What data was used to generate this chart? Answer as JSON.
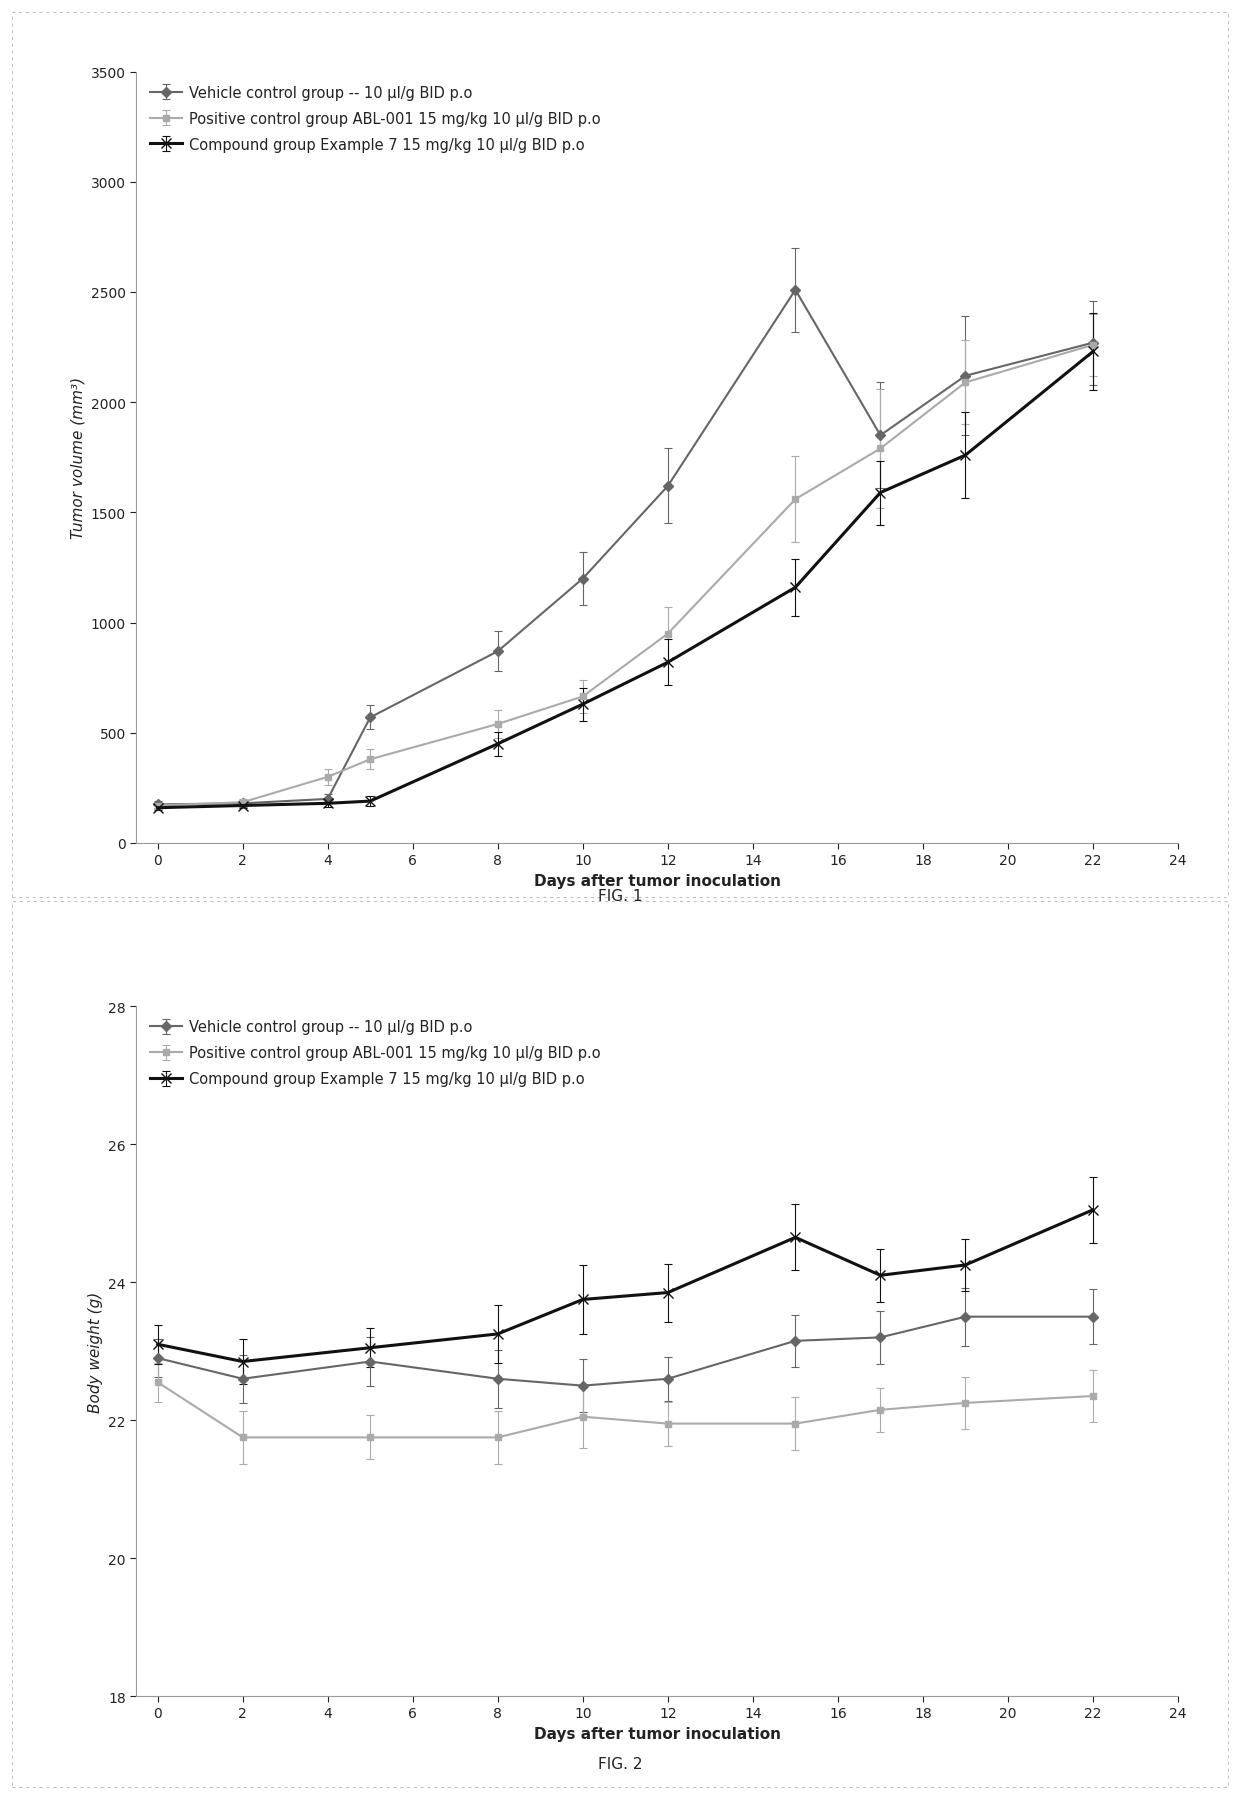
{
  "fig1": {
    "title": "FIG. 1",
    "xlabel": "Days after tumor inoculation",
    "ylabel": "Tumor volume (mm³)",
    "xlim": [
      -0.5,
      24
    ],
    "ylim": [
      0,
      3500
    ],
    "xticks": [
      0,
      2,
      4,
      6,
      8,
      10,
      12,
      14,
      16,
      18,
      20,
      22,
      24
    ],
    "yticks": [
      0,
      500,
      1000,
      1500,
      2000,
      2500,
      3000,
      3500
    ],
    "series": [
      {
        "label": "Vehicle control group -- 10 μl/g BID p.o",
        "color": "#666666",
        "linewidth": 1.5,
        "marker": "D",
        "markersize": 5,
        "x": [
          0,
          2,
          4,
          5,
          8,
          10,
          12,
          15,
          17,
          19,
          22
        ],
        "y": [
          175,
          180,
          200,
          570,
          870,
          1200,
          1620,
          2510,
          1850,
          2120,
          2270
        ],
        "yerr": [
          15,
          15,
          20,
          55,
          90,
          120,
          170,
          190,
          240,
          270,
          190
        ]
      },
      {
        "label": "Positive control group ABL-001 15 mg/kg 10 μl/g BID p.o",
        "color": "#aaaaaa",
        "linewidth": 1.5,
        "marker": "s",
        "markersize": 5,
        "x": [
          0,
          2,
          4,
          5,
          8,
          10,
          12,
          15,
          17,
          19,
          22
        ],
        "y": [
          170,
          185,
          300,
          380,
          540,
          665,
          950,
          1560,
          1790,
          2090,
          2260
        ],
        "yerr": [
          15,
          15,
          35,
          45,
          65,
          75,
          120,
          195,
          270,
          190,
          140
        ]
      },
      {
        "label": "Compound group Example 7 15 mg/kg 10 μl/g BID p.o",
        "color": "#111111",
        "linewidth": 2.2,
        "marker": "x",
        "markersize": 7,
        "x": [
          0,
          2,
          4,
          5,
          8,
          10,
          12,
          15,
          17,
          19,
          22
        ],
        "y": [
          160,
          170,
          180,
          190,
          450,
          630,
          820,
          1160,
          1590,
          1760,
          2230
        ],
        "yerr": [
          12,
          12,
          18,
          22,
          55,
          75,
          105,
          130,
          145,
          195,
          175
        ]
      }
    ]
  },
  "fig2": {
    "title": "FIG. 2",
    "xlabel": "Days after tumor inoculation",
    "ylabel": "Body weight (g)",
    "xlim": [
      -0.5,
      24
    ],
    "ylim": [
      18.0,
      28.0
    ],
    "xticks": [
      0,
      2,
      4,
      6,
      8,
      10,
      12,
      14,
      16,
      18,
      20,
      22,
      24
    ],
    "yticks": [
      18.0,
      20.0,
      22.0,
      24.0,
      26.0,
      28.0
    ],
    "series": [
      {
        "label": "Vehicle control group -- 10 μl/g BID p.o",
        "color": "#666666",
        "linewidth": 1.5,
        "marker": "D",
        "markersize": 5,
        "x": [
          0,
          2,
          5,
          8,
          10,
          12,
          15,
          17,
          19,
          22
        ],
        "y": [
          22.9,
          22.6,
          22.85,
          22.6,
          22.5,
          22.6,
          23.15,
          23.2,
          23.5,
          23.5
        ],
        "yerr": [
          0.28,
          0.35,
          0.35,
          0.42,
          0.38,
          0.32,
          0.38,
          0.38,
          0.42,
          0.4
        ]
      },
      {
        "label": "Positive control group ABL-001 15 mg/kg 10 μl/g BID p.o",
        "color": "#aaaaaa",
        "linewidth": 1.5,
        "marker": "s",
        "markersize": 5,
        "x": [
          0,
          2,
          5,
          8,
          10,
          12,
          15,
          17,
          19,
          22
        ],
        "y": [
          22.55,
          21.75,
          21.75,
          21.75,
          22.05,
          21.95,
          21.95,
          22.15,
          22.25,
          22.35
        ],
        "yerr": [
          0.28,
          0.38,
          0.32,
          0.38,
          0.45,
          0.32,
          0.38,
          0.32,
          0.38,
          0.38
        ]
      },
      {
        "label": "Compound group Example 7 15 mg/kg 10 μl/g BID p.o",
        "color": "#111111",
        "linewidth": 2.2,
        "marker": "x",
        "markersize": 7,
        "x": [
          0,
          2,
          5,
          8,
          10,
          12,
          15,
          17,
          19,
          22
        ],
        "y": [
          23.1,
          22.85,
          23.05,
          23.25,
          23.75,
          23.85,
          24.65,
          24.1,
          24.25,
          25.05
        ],
        "yerr": [
          0.28,
          0.32,
          0.28,
          0.42,
          0.5,
          0.42,
          0.48,
          0.38,
          0.38,
          0.48
        ]
      }
    ]
  },
  "background_color": "#ffffff",
  "border_color": "#bbbbbb",
  "text_color": "#222222",
  "legend_fontsize": 10.5,
  "axis_label_fontsize": 11,
  "tick_fontsize": 10,
  "fig_label_fontsize": 11
}
